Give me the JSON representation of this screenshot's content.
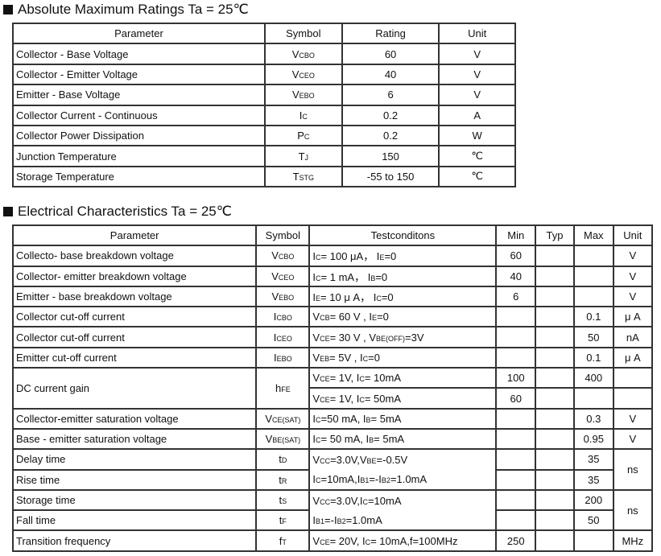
{
  "amr": {
    "title": "Absolute Maximum Ratings Ta = 25℃",
    "headers": [
      "Parameter",
      "Symbol",
      "Rating",
      "Unit"
    ],
    "rows": [
      {
        "param": "Collector - Base Voltage",
        "symbol": [
          "V",
          {
            "sub": "CBO"
          }
        ],
        "rating": "60",
        "unit": "V"
      },
      {
        "param": "Collector - Emitter Voltage",
        "symbol": [
          "V",
          {
            "sub": "CEO"
          }
        ],
        "rating": "40",
        "unit": "V"
      },
      {
        "param": "Emitter - Base Voltage",
        "symbol": [
          "V",
          {
            "sub": "EBO"
          }
        ],
        "rating": "6",
        "unit": "V"
      },
      {
        "param": "Collector Current  - Continuous",
        "symbol": [
          "I",
          {
            "sub": "C"
          }
        ],
        "rating": "0.2",
        "unit": "A"
      },
      {
        "param": "Collector Power Dissipation",
        "symbol": [
          "P",
          {
            "sub": "C"
          }
        ],
        "rating": "0.2",
        "unit": "W"
      },
      {
        "param": "Junction Temperature",
        "symbol": [
          "T",
          {
            "sub": "J"
          }
        ],
        "rating": "150",
        "unit": "℃"
      },
      {
        "param": "Storage Temperature",
        "symbol": [
          "T",
          {
            "sub": "stg"
          }
        ],
        "rating": "-55 to 150",
        "unit": "℃"
      }
    ]
  },
  "ec": {
    "title": "Electrical Characteristics Ta = 25℃",
    "headers": [
      "Parameter",
      "Symbol",
      "Testconditons",
      "Min",
      "Typ",
      "Max",
      "Unit"
    ],
    "rows": [
      {
        "param": "Collecto- base breakdown voltage",
        "symbol": [
          "V",
          {
            "sub": "CBO"
          }
        ],
        "cond": [
          "I",
          {
            "sub": "C"
          },
          "= 100 μA，  I",
          {
            "sub": "E"
          },
          "=0"
        ],
        "min": "60",
        "typ": "",
        "max": "",
        "unit": "V"
      },
      {
        "param": "Collector- emitter breakdown voltage",
        "symbol": [
          "V",
          {
            "sub": "CEO"
          }
        ],
        "cond": [
          "I",
          {
            "sub": "C"
          },
          "= 1 mA，  I",
          {
            "sub": "B"
          },
          "=0"
        ],
        "min": "40",
        "typ": "",
        "max": "",
        "unit": "V"
      },
      {
        "param": "Emitter - base breakdown voltage",
        "symbol": [
          "V",
          {
            "sub": "EBO"
          }
        ],
        "cond": [
          "I",
          {
            "sub": "E"
          },
          "= 10 μ A，  I",
          {
            "sub": "C"
          },
          "=0"
        ],
        "min": "6",
        "typ": "",
        "max": "",
        "unit": "V"
      },
      {
        "param": "Collector cut-off current",
        "symbol": [
          "I",
          {
            "sub": "CBO"
          }
        ],
        "cond": [
          "V",
          {
            "sub": "CB"
          },
          "= 60 V , I",
          {
            "sub": "E"
          },
          "=0"
        ],
        "min": "",
        "typ": "",
        "max": "0.1",
        "unit": "μ A"
      },
      {
        "param": "Collector cut-off current",
        "symbol": [
          "I",
          {
            "sub": "CEO"
          }
        ],
        "cond": [
          "V",
          {
            "sub": "CE"
          },
          "= 30 V , V",
          {
            "sub": "BE(off)"
          },
          "=3V"
        ],
        "min": "",
        "typ": "",
        "max": "50",
        "unit": "nA"
      },
      {
        "param": "Emitter cut-off current",
        "symbol": [
          "I",
          {
            "sub": "EBO"
          }
        ],
        "cond": [
          "V",
          {
            "sub": "EB"
          },
          "= 5V , I",
          {
            "sub": "C"
          },
          "=0"
        ],
        "min": "",
        "typ": "",
        "max": "0.1",
        "unit": "μ A"
      },
      {
        "param": "DC current gain",
        "symbol": [
          "h",
          {
            "sub": "FE"
          }
        ],
        "cond": [
          "V",
          {
            "sub": "CE"
          },
          "= 1V, I",
          {
            "sub": "C"
          },
          "= 10mA"
        ],
        "min": "100",
        "typ": "",
        "max": "400",
        "unit": ""
      },
      {
        "param": "",
        "symbol": [],
        "cond": [
          "V",
          {
            "sub": "CE"
          },
          "= 1V, I",
          {
            "sub": "C"
          },
          "= 50mA"
        ],
        "min": "60",
        "typ": "",
        "max": "",
        "unit": ""
      },
      {
        "param": "Collector-emitter saturation voltage",
        "symbol": [
          "V",
          {
            "sub": "CE(sat)"
          }
        ],
        "cond": [
          "I",
          {
            "sub": "C"
          },
          "=50 mA, I",
          {
            "sub": "B"
          },
          "= 5mA"
        ],
        "min": "",
        "typ": "",
        "max": "0.3",
        "unit": "V"
      },
      {
        "param": "Base - emitter saturation voltage",
        "symbol": [
          "V",
          {
            "sub": "BE(sat)"
          }
        ],
        "cond": [
          "I",
          {
            "sub": "C"
          },
          "= 50 mA, I",
          {
            "sub": "B"
          },
          "= 5mA"
        ],
        "min": "",
        "typ": "",
        "max": "0.95",
        "unit": "V"
      },
      {
        "param": "Delay time",
        "symbol": [
          "t",
          {
            "sub": "d"
          }
        ],
        "cond": [
          "V",
          {
            "sub": "CC"
          },
          "=3.0V,V",
          {
            "sub": "BE"
          },
          "=-0.5V"
        ],
        "min": "",
        "typ": "",
        "max": "35",
        "unit": "ns"
      },
      {
        "param": "Rise time",
        "symbol": [
          "t",
          {
            "sub": "r"
          }
        ],
        "cond": [
          "I",
          {
            "sub": "C"
          },
          "=10mA,I",
          {
            "sub": "B1"
          },
          "=-I",
          {
            "sub": "B2"
          },
          "=1.0mA"
        ],
        "min": "",
        "typ": "",
        "max": "35",
        "unit": ""
      },
      {
        "param": "Storage time",
        "symbol": [
          "t",
          {
            "sub": "s"
          }
        ],
        "cond": [
          "V",
          {
            "sub": "CC"
          },
          "=3.0V,I",
          {
            "sub": "C"
          },
          "=10mA"
        ],
        "min": "",
        "typ": "",
        "max": "200",
        "unit": "ns"
      },
      {
        "param": "Fall time",
        "symbol": [
          "t",
          {
            "sub": "f"
          }
        ],
        "cond": [
          "I",
          {
            "sub": "B1"
          },
          "=-I",
          {
            "sub": "B2"
          },
          "=1.0mA"
        ],
        "min": "",
        "typ": "",
        "max": "50",
        "unit": ""
      },
      {
        "param": "Transition frequency",
        "symbol": [
          "f",
          {
            "sub": "T"
          }
        ],
        "cond": [
          "V",
          {
            "sub": "CE"
          },
          "= 20V, I",
          {
            "sub": "C"
          },
          "= 10mA,f=100MHz"
        ],
        "min": "250",
        "typ": "",
        "max": "",
        "unit": "MHz"
      }
    ]
  }
}
